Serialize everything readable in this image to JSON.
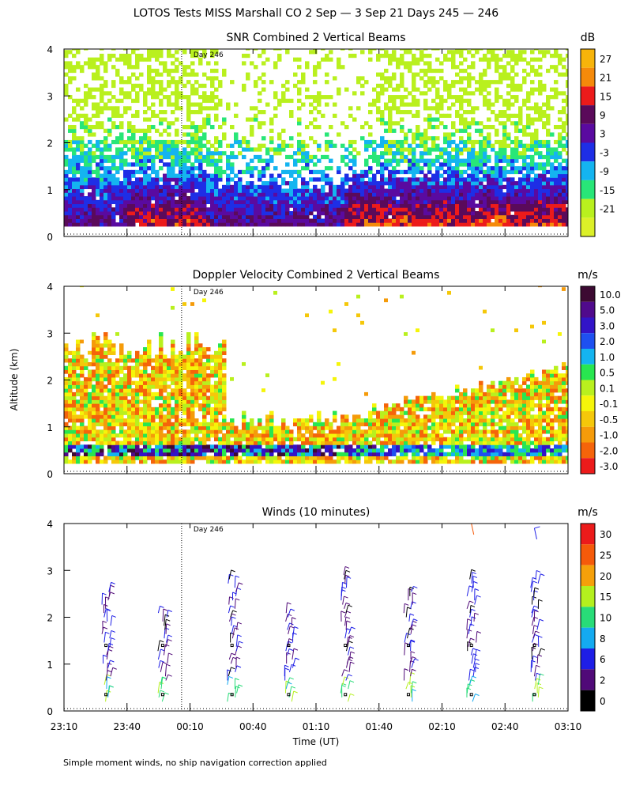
{
  "title": "LOTOS Tests MISS Marshall CO   2 Sep —  3 Sep 21 Days 245 — 246",
  "footnote": "Simple moment winds, no ship navigation correction applied",
  "shared_axes": {
    "ylabel": "Altitude (km)",
    "xlabel": "Time (UT)",
    "yticks": [
      "0",
      "1",
      "2",
      "3",
      "4"
    ],
    "xticks": [
      "23:10",
      "23:40",
      "00:10",
      "00:40",
      "01:10",
      "01:40",
      "02:10",
      "02:40",
      "03:10"
    ],
    "day_marker": "Day 246",
    "day_marker_time_hours": 24.1
  },
  "chart_data": [
    {
      "type": "heatmap",
      "title": "SNR Combined 2 Vertical Beams",
      "units": "dB",
      "xlim_hours": [
        23.1667,
        27.1667
      ],
      "ylim": [
        0,
        4
      ],
      "colorbar": [
        {
          "label": "27",
          "color": "#f7b40a"
        },
        {
          "label": "21",
          "color": "#f58a0a"
        },
        {
          "label": "15",
          "color": "#ec1b1b"
        },
        {
          "label": "9",
          "color": "#5a0a5a"
        },
        {
          "label": "3",
          "color": "#5a0aa0"
        },
        {
          "label": "-3",
          "color": "#1e2ee6"
        },
        {
          "label": "-9",
          "color": "#14b4f0"
        },
        {
          "label": "-15",
          "color": "#28e678"
        },
        {
          "label": "-21",
          "color": "#b9f01e"
        }
      ],
      "bottom_color_extra": "#dcf028"
    },
    {
      "type": "heatmap",
      "title": "Doppler Velocity Combined 2 Vertical Beams",
      "units": "m/s",
      "xlim_hours": [
        23.1667,
        27.1667
      ],
      "ylim": [
        0,
        4
      ],
      "colorbar": [
        {
          "label": "10.0",
          "color": "#3c0a32"
        },
        {
          "label": "5.0",
          "color": "#500a8c"
        },
        {
          "label": "3.0",
          "color": "#3214c8"
        },
        {
          "label": "2.0",
          "color": "#1e50f0"
        },
        {
          "label": "1.0",
          "color": "#14b4f0"
        },
        {
          "label": "0.5",
          "color": "#28e650"
        },
        {
          "label": "0.1",
          "color": "#b9f01e"
        },
        {
          "label": "-0.1",
          "color": "#f5f50a"
        },
        {
          "label": "-0.5",
          "color": "#f5c80a"
        },
        {
          "label": "-1.0",
          "color": "#f59b0a"
        },
        {
          "label": "-2.0",
          "color": "#f5640a"
        },
        {
          "label": "-3.0",
          "color": "#ec1b1b"
        }
      ]
    },
    {
      "type": "barbs",
      "title": "Winds (10 minutes)",
      "units": "m/s",
      "xlim_hours": [
        23.1667,
        27.1667
      ],
      "ylim": [
        0,
        4
      ],
      "profile_times_hours": [
        23.5,
        23.95,
        24.5,
        24.95,
        25.4,
        25.9,
        26.4,
        26.9
      ],
      "colorbar": [
        {
          "label": "30",
          "color": "#ec1b1b"
        },
        {
          "label": "25",
          "color": "#f55a0a"
        },
        {
          "label": "20",
          "color": "#f5a00a"
        },
        {
          "label": "15",
          "color": "#b4f01e"
        },
        {
          "label": "10",
          "color": "#28dc78"
        },
        {
          "label": "8",
          "color": "#14aaf0"
        },
        {
          "label": "6",
          "color": "#1e1ee6"
        },
        {
          "label": "2",
          "color": "#500a78"
        },
        {
          "label": "0",
          "color": "#000000"
        }
      ]
    }
  ]
}
